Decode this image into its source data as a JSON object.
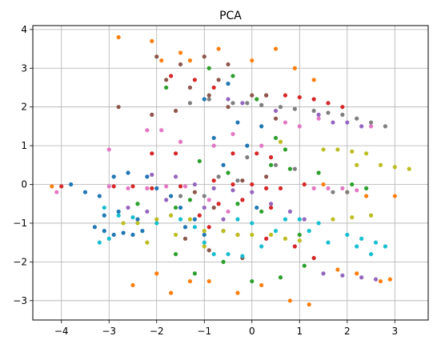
{
  "chart_data": {
    "type": "scatter",
    "title": "PCA",
    "xlabel": "",
    "ylabel": "",
    "xlim": [
      -4.6,
      3.7
    ],
    "ylim": [
      -3.5,
      4.1
    ],
    "xticks": [
      -4,
      -3,
      -2,
      -1,
      0,
      1,
      2,
      3
    ],
    "yticks": [
      -3,
      -2,
      -1,
      0,
      1,
      2,
      3,
      4
    ],
    "xtick_labels": [
      "−4",
      "−3",
      "−2",
      "−1",
      "0",
      "1",
      "2",
      "3"
    ],
    "ytick_labels": [
      "−3",
      "−2",
      "−1",
      "0",
      "1",
      "2",
      "3",
      "4"
    ],
    "grid": true,
    "legend": "none",
    "series": [
      {
        "color": "#1f77b4",
        "points": [
          [
            -3.3,
            -1.1
          ],
          [
            -3.1,
            -1.2
          ],
          [
            -2.9,
            -1.3
          ],
          [
            -2.7,
            -1.25
          ],
          [
            -2.5,
            -1.3
          ],
          [
            -2.3,
            -1.2
          ],
          [
            -3.5,
            -0.2
          ],
          [
            -3.2,
            -0.3
          ],
          [
            -2.9,
            0.2
          ],
          [
            -2.6,
            0.3
          ],
          [
            -2.2,
            0.2
          ],
          [
            -2.0,
            -0.1
          ],
          [
            -1.7,
            -0.3
          ],
          [
            -1.5,
            -0.6
          ],
          [
            -1.2,
            -0.9
          ],
          [
            -1.0,
            -1.3
          ],
          [
            -0.8,
            1.2
          ],
          [
            -0.6,
            0.5
          ],
          [
            -0.3,
            1.6
          ],
          [
            -0.1,
            1.0
          ],
          [
            0.2,
            1.5
          ],
          [
            -0.5,
            2.6
          ],
          [
            -1.0,
            2.2
          ],
          [
            -3.1,
            -0.8
          ],
          [
            -2.8,
            -0.7
          ],
          [
            -2.4,
            -0.9
          ],
          [
            -3.8,
            0.0
          ],
          [
            -1.4,
            -1.1
          ],
          [
            -0.6,
            -1.2
          ],
          [
            0.1,
            -0.6
          ]
        ]
      },
      {
        "color": "#ff7f0e",
        "points": [
          [
            -2.8,
            3.8
          ],
          [
            -2.1,
            3.7
          ],
          [
            -1.9,
            3.2
          ],
          [
            -1.5,
            3.4
          ],
          [
            -1.3,
            3.2
          ],
          [
            -0.7,
            3.5
          ],
          [
            0.0,
            3.2
          ],
          [
            0.5,
            3.5
          ],
          [
            0.9,
            3.0
          ],
          [
            1.3,
            2.7
          ],
          [
            -2.5,
            -2.6
          ],
          [
            -2.0,
            -2.3
          ],
          [
            -1.3,
            -2.5
          ],
          [
            -0.3,
            -2.8
          ],
          [
            0.2,
            -2.6
          ],
          [
            0.8,
            -3.0
          ],
          [
            1.2,
            -3.1
          ],
          [
            1.8,
            -2.2
          ],
          [
            2.2,
            -2.3
          ],
          [
            2.7,
            -2.5
          ],
          [
            3.0,
            -0.3
          ],
          [
            2.4,
            -0.3
          ],
          [
            2.0,
            -0.2
          ],
          [
            1.5,
            0.0
          ],
          [
            -4.2,
            -0.05
          ],
          [
            -1.7,
            -2.8
          ],
          [
            -0.9,
            -2.5
          ],
          [
            2.9,
            -2.45
          ]
        ]
      },
      {
        "color": "#2ca02c",
        "points": [
          [
            -0.9,
            3.0
          ],
          [
            -0.4,
            2.8
          ],
          [
            -1.8,
            2.5
          ],
          [
            0.1,
            2.2
          ],
          [
            0.5,
            1.2
          ],
          [
            -1.1,
            0.6
          ],
          [
            -0.5,
            0.3
          ],
          [
            0.4,
            0.5
          ],
          [
            0.8,
            0.4
          ],
          [
            1.4,
            0.3
          ],
          [
            2.1,
            0.0
          ],
          [
            2.4,
            -0.1
          ],
          [
            -2.4,
            -0.5
          ],
          [
            -1.6,
            -0.6
          ],
          [
            -1.3,
            -0.4
          ],
          [
            -0.3,
            -0.5
          ],
          [
            0.2,
            -0.7
          ],
          [
            1.0,
            -1.3
          ],
          [
            -1.2,
            -2.3
          ],
          [
            -0.6,
            -2.0
          ],
          [
            0.0,
            -2.5
          ],
          [
            0.6,
            -2.4
          ],
          [
            1.1,
            -2.1
          ],
          [
            -1.6,
            -1.8
          ],
          [
            0.7,
            0.9
          ]
        ]
      },
      {
        "color": "#d62728",
        "points": [
          [
            -1.7,
            2.8
          ],
          [
            -1.2,
            2.7
          ],
          [
            -0.8,
            2.5
          ],
          [
            0.3,
            2.3
          ],
          [
            0.7,
            2.3
          ],
          [
            1.0,
            2.25
          ],
          [
            1.3,
            2.2
          ],
          [
            1.6,
            2.1
          ],
          [
            1.9,
            2.0
          ],
          [
            -2.1,
            0.8
          ],
          [
            -1.6,
            0.8
          ],
          [
            -0.4,
            0.8
          ],
          [
            0.1,
            0.8
          ],
          [
            0.4,
            0.7
          ],
          [
            -0.8,
            0.1
          ],
          [
            -0.4,
            0.0
          ],
          [
            0.0,
            0.0
          ],
          [
            0.3,
            -0.1
          ],
          [
            0.6,
            -0.1
          ],
          [
            1.1,
            0.0
          ],
          [
            -1.1,
            -0.8
          ],
          [
            -0.7,
            -0.5
          ],
          [
            -0.2,
            -0.4
          ],
          [
            0.4,
            -0.6
          ],
          [
            -0.9,
            -1.1
          ],
          [
            -0.3,
            -1.3
          ],
          [
            0.3,
            -1.4
          ],
          [
            0.9,
            -1.6
          ],
          [
            1.3,
            -1.9
          ],
          [
            -2.9,
            -0.05
          ],
          [
            -2.5,
            -0.05
          ],
          [
            -2.1,
            -0.1
          ],
          [
            -1.5,
            -0.05
          ],
          [
            -4.0,
            -0.05
          ]
        ]
      },
      {
        "color": "#9467bd",
        "points": [
          [
            -2.1,
            0.25
          ],
          [
            -1.6,
            0.2
          ],
          [
            -1.2,
            0.0
          ],
          [
            -0.8,
            -0.1
          ],
          [
            -0.4,
            -0.15
          ],
          [
            0.0,
            -0.2
          ],
          [
            0.4,
            -0.5
          ],
          [
            0.8,
            -0.7
          ],
          [
            1.1,
            -0.9
          ],
          [
            -2.6,
            -0.6
          ],
          [
            -2.2,
            -0.7
          ],
          [
            -1.8,
            -0.4
          ],
          [
            -1.0,
            -0.6
          ],
          [
            -0.6,
            -0.9
          ],
          [
            1.4,
            1.8
          ],
          [
            1.7,
            1.6
          ],
          [
            2.0,
            1.6
          ],
          [
            2.3,
            1.5
          ],
          [
            1.5,
            -2.3
          ],
          [
            1.9,
            -2.35
          ],
          [
            2.3,
            -2.4
          ],
          [
            2.6,
            -2.45
          ],
          [
            -0.5,
            2.2
          ],
          [
            -0.2,
            2.1
          ],
          [
            0.5,
            1.9
          ]
        ]
      },
      {
        "color": "#8c564b",
        "points": [
          [
            -2.0,
            3.3
          ],
          [
            -1.5,
            3.1
          ],
          [
            -1.0,
            3.3
          ],
          [
            -0.5,
            3.1
          ],
          [
            -1.8,
            2.7
          ],
          [
            -1.3,
            2.5
          ],
          [
            -2.8,
            2.0
          ],
          [
            -0.9,
            2.3
          ],
          [
            -0.5,
            2.0
          ],
          [
            0.0,
            2.3
          ],
          [
            0.3,
            2.3
          ],
          [
            0.5,
            1.7
          ],
          [
            -1.6,
            1.9
          ],
          [
            -0.2,
            0.1
          ],
          [
            0.3,
            0.2
          ],
          [
            -1.2,
            -0.2
          ],
          [
            -0.8,
            -0.6
          ],
          [
            -1.4,
            -1.4
          ],
          [
            -0.9,
            -1.7
          ],
          [
            -0.2,
            -1.9
          ],
          [
            -2.1,
            1.8
          ],
          [
            -0.7,
            2.7
          ]
        ]
      },
      {
        "color": "#e377c2",
        "points": [
          [
            -2.2,
            1.4
          ],
          [
            -1.9,
            1.4
          ],
          [
            -1.5,
            1.1
          ],
          [
            -0.8,
            1.0
          ],
          [
            -0.4,
            1.3
          ],
          [
            0.2,
            1.0
          ],
          [
            1.3,
            -0.1
          ],
          [
            1.6,
            -0.1
          ],
          [
            1.9,
            -0.1
          ],
          [
            2.2,
            -0.15
          ],
          [
            -3.0,
            -0.05
          ],
          [
            -2.6,
            -0.1
          ],
          [
            -2.2,
            -0.1
          ],
          [
            -1.8,
            -0.05
          ],
          [
            -1.4,
            -0.05
          ],
          [
            -4.1,
            -0.2
          ],
          [
            -0.9,
            -0.4
          ],
          [
            -0.5,
            -0.7
          ],
          [
            -3.0,
            0.9
          ],
          [
            0.7,
            1.6
          ],
          [
            1.0,
            1.5
          ],
          [
            1.4,
            1.7
          ],
          [
            2.5,
            1.5
          ]
        ]
      },
      {
        "color": "#7f7f7f",
        "points": [
          [
            -0.4,
            2.1
          ],
          [
            -0.1,
            2.1
          ],
          [
            0.2,
            2.05
          ],
          [
            0.6,
            2.0
          ],
          [
            0.9,
            1.95
          ],
          [
            1.3,
            1.9
          ],
          [
            1.6,
            1.85
          ],
          [
            1.9,
            1.8
          ],
          [
            2.2,
            1.7
          ],
          [
            2.5,
            1.6
          ],
          [
            2.8,
            1.5
          ],
          [
            -1.3,
            2.1
          ],
          [
            -0.9,
            2.2
          ],
          [
            -0.1,
            0.7
          ],
          [
            0.5,
            0.5
          ],
          [
            0.9,
            0.4
          ],
          [
            -0.7,
            0.2
          ],
          [
            -0.3,
            0.1
          ],
          [
            -1.0,
            -0.3
          ],
          [
            -1.5,
            -0.3
          ],
          [
            1.7,
            -0.2
          ],
          [
            2.0,
            -0.2
          ]
        ]
      },
      {
        "color": "#bcbd22",
        "points": [
          [
            1.5,
            0.9
          ],
          [
            1.8,
            0.9
          ],
          [
            2.1,
            0.85
          ],
          [
            2.4,
            0.8
          ],
          [
            2.2,
            0.5
          ],
          [
            2.7,
            0.5
          ],
          [
            3.0,
            0.45
          ],
          [
            3.3,
            0.4
          ],
          [
            -2.7,
            -1.0
          ],
          [
            -2.4,
            -1.0
          ],
          [
            -2.0,
            -0.9
          ],
          [
            -1.7,
            -0.8
          ],
          [
            -1.3,
            -0.9
          ],
          [
            -1.0,
            -1.2
          ],
          [
            -0.6,
            -1.2
          ],
          [
            -0.3,
            -1.3
          ],
          [
            0.0,
            -1.3
          ],
          [
            0.4,
            -1.3
          ],
          [
            0.7,
            -1.4
          ],
          [
            1.0,
            -1.45
          ],
          [
            -2.2,
            -1.5
          ],
          [
            -1.6,
            -1.3
          ],
          [
            -1.0,
            -1.6
          ],
          [
            1.7,
            -0.9
          ],
          [
            2.1,
            -0.85
          ],
          [
            2.5,
            -0.8
          ],
          [
            0.6,
            1.1
          ]
        ]
      },
      {
        "color": "#17becf",
        "points": [
          [
            -3.1,
            -0.6
          ],
          [
            -2.8,
            -0.8
          ],
          [
            -2.5,
            -0.85
          ],
          [
            -2.0,
            -1.0
          ],
          [
            -1.5,
            -0.9
          ],
          [
            -1.2,
            -1.1
          ],
          [
            -1.0,
            -1.5
          ],
          [
            -0.8,
            -1.8
          ],
          [
            -0.5,
            -1.8
          ],
          [
            -0.2,
            -1.85
          ],
          [
            0.2,
            -1.6
          ],
          [
            0.5,
            -1.2
          ],
          [
            0.7,
            -0.9
          ],
          [
            1.0,
            -0.9
          ],
          [
            1.2,
            -1.2
          ],
          [
            1.4,
            -1.0
          ],
          [
            1.6,
            -1.5
          ],
          [
            2.0,
            -1.3
          ],
          [
            2.3,
            -1.4
          ],
          [
            2.6,
            -1.5
          ],
          [
            2.8,
            -1.6
          ],
          [
            2.2,
            -1.6
          ],
          [
            2.5,
            -1.8
          ],
          [
            -3.0,
            -1.4
          ],
          [
            -3.2,
            -1.5
          ],
          [
            -0.3,
            -0.9
          ],
          [
            0.0,
            -1.0
          ]
        ]
      }
    ]
  }
}
